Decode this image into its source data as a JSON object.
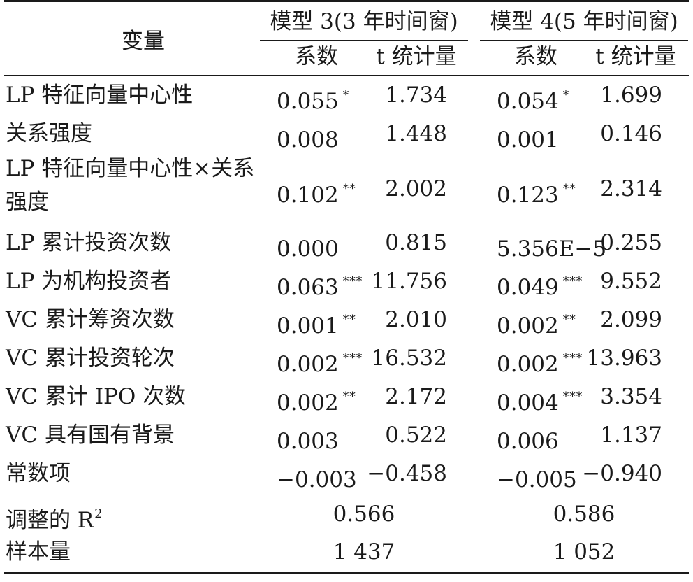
{
  "header": {
    "variable": "变量",
    "model3": "模型 3(3 年时间窗)",
    "model4": "模型 4(5 年时间窗)",
    "coef": "系数",
    "tstat": "t 统计量"
  },
  "rows": [
    {
      "var": "LP 特征向量中心性",
      "c3": "0.055",
      "s3": "*",
      "t3": "1.734",
      "c4": "0.054",
      "s4": "*",
      "t4": "1.699"
    },
    {
      "var": "关系强度",
      "c3": "0.008",
      "s3": "",
      "t3": "1.448",
      "c4": "0.001",
      "s4": "",
      "t4": "0.146"
    },
    {
      "var": "LP 特征向量中心性×关系强度",
      "c3": "0.102",
      "s3": "**",
      "t3": "2.002",
      "c4": "0.123",
      "s4": "**",
      "t4": "2.314"
    },
    {
      "var": "LP 累计投资次数",
      "c3": "0.000",
      "s3": "",
      "t3": "0.815",
      "c4": "5.356E−5",
      "s4": "",
      "t4": "0.255"
    },
    {
      "var": "LP 为机构投资者",
      "c3": "0.063",
      "s3": "***",
      "t3": "11.756",
      "c4": "0.049",
      "s4": "***",
      "t4": "9.552"
    },
    {
      "var": "VC 累计筹资次数",
      "c3": "0.001",
      "s3": "**",
      "t3": "2.010",
      "c4": "0.002",
      "s4": "**",
      "t4": "2.099"
    },
    {
      "var": "VC 累计投资轮次",
      "c3": "0.002",
      "s3": "***",
      "t3": "16.532",
      "c4": "0.002",
      "s4": "***",
      "t4": "13.963"
    },
    {
      "var": "VC 累计 IPO 次数",
      "c3": "0.002",
      "s3": "**",
      "t3": "2.172",
      "c4": "0.004",
      "s4": "***",
      "t4": "3.354"
    },
    {
      "var": "VC 具有国有背景",
      "c3": "0.003",
      "s3": "",
      "t3": "0.522",
      "c4": "0.006",
      "s4": "",
      "t4": "1.137"
    },
    {
      "var": "常数项",
      "c3": "−0.003",
      "s3": "",
      "t3": "−0.458",
      "c4": "−0.005",
      "s4": "",
      "t4": "−0.940"
    }
  ],
  "r2": {
    "label": "调整的 R",
    "sup": "2",
    "m3": "0.566",
    "m4": "0.586"
  },
  "n": {
    "label": "样本量",
    "m3": "1 437",
    "m4": "1 052"
  }
}
